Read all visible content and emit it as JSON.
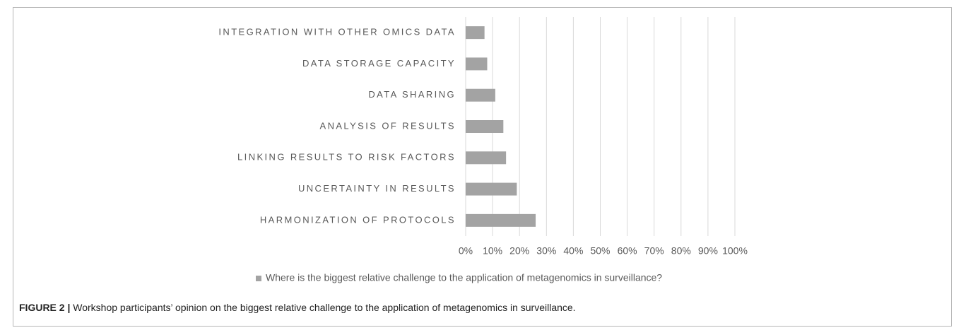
{
  "chart_data": {
    "type": "bar",
    "orientation": "horizontal",
    "categories": [
      "INTEGRATION WITH OTHER OMICS DATA",
      "DATA STORAGE CAPACITY",
      "DATA SHARING",
      "ANALYSIS OF RESULTS",
      "LINKING RESULTS TO RISK FACTORS",
      "UNCERTAINTY IN RESULTS",
      "HARMONIZATION OF PROTOCOLS"
    ],
    "series": [
      {
        "name": "Where is the biggest relative challenge to the application of metagenomics in surveillance?",
        "color": "#a3a3a3",
        "values": [
          7,
          8,
          11,
          14,
          15,
          19,
          26
        ]
      }
    ],
    "xlim": [
      0,
      100
    ],
    "xticks": [
      {
        "value": 0,
        "label": "0%"
      },
      {
        "value": 10,
        "label": "10%"
      },
      {
        "value": 20,
        "label": "20%"
      },
      {
        "value": 30,
        "label": "30%"
      },
      {
        "value": 40,
        "label": "40%"
      },
      {
        "value": 50,
        "label": "50%"
      },
      {
        "value": 60,
        "label": "60%"
      },
      {
        "value": 70,
        "label": "70%"
      },
      {
        "value": 80,
        "label": "80%"
      },
      {
        "value": 90,
        "label": "90%"
      },
      {
        "value": 100,
        "label": "100%"
      }
    ],
    "grid": true,
    "legend": "bottom"
  },
  "caption": {
    "label": "FIGURE 2 |",
    "text": "Workshop participants’ opinion on the biggest relative challenge to the application of metagenomics in surveillance."
  }
}
